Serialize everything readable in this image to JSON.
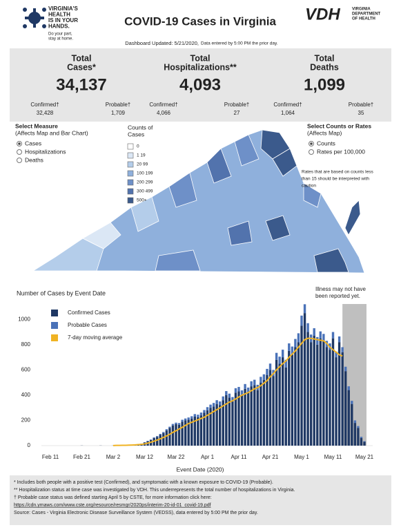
{
  "header": {
    "logo_lines": [
      "VIRGINIA'S",
      "HEALTH",
      "IS IN YOUR",
      "HANDS."
    ],
    "logo_tag": [
      "Do your part,",
      "stay at home."
    ],
    "title": "COVID-19 Cases in Virginia",
    "vdh": "VDH",
    "vdh_lines": [
      "VIRGINIA",
      "DEPARTMENT",
      "OF HEALTH"
    ],
    "updated": "Dashboard Updated: 5/21/2020,",
    "updated_note": "Data entered by 5:00 PM the prior day."
  },
  "stats": [
    {
      "label_lines": [
        "Total",
        "Cases*"
      ],
      "value": "34,137",
      "confirmed_label": "Confirmed†",
      "confirmed": "32,428",
      "probable_label": "Probable†",
      "probable": "1,709"
    },
    {
      "label_lines": [
        "Total",
        "Hospitalizations**"
      ],
      "value": "4,093",
      "confirmed_label": "Confirmed†",
      "confirmed": "4,066",
      "probable_label": "Probable†",
      "probable": "27"
    },
    {
      "label_lines": [
        "Total",
        "Deaths"
      ],
      "value": "1,099",
      "confirmed_label": "Confirmed†",
      "confirmed": "1,064",
      "probable_label": "Probable†",
      "probable": "35"
    }
  ],
  "measure": {
    "title": "Select Measure",
    "subtitle": "(Affects Map and Bar Chart)",
    "options": [
      "Cases",
      "Hospitalizations",
      "Deaths"
    ],
    "selected": 0
  },
  "counts_legend": {
    "title_lines": [
      "Counts of",
      "Cases"
    ],
    "items": [
      {
        "label": "0",
        "color": "#ffffff"
      },
      {
        "label": "1 19",
        "color": "#dbe7f5"
      },
      {
        "label": "20 99",
        "color": "#b4cdea"
      },
      {
        "label": "100 199",
        "color": "#8fb0dc"
      },
      {
        "label": "200 299",
        "color": "#6e90c8"
      },
      {
        "label": "300 499",
        "color": "#5273ad"
      },
      {
        "label": "500+",
        "color": "#3b5a8c"
      }
    ]
  },
  "select_counts": {
    "title": "Select Counts or Rates",
    "subtitle": "(Affects Map)",
    "options": [
      "Counts",
      "Rates per 100,000"
    ],
    "selected": 0,
    "note_lines": [
      "Rates that are based on counts less",
      "than 15 should be interpreted with",
      "caution"
    ]
  },
  "chart_data": {
    "type": "bar",
    "title": "Number of Cases by Event Date",
    "x_label": "Event Date (2020)",
    "annotation_lines": [
      "Illness may not have",
      "been reported yet."
    ],
    "categories": [
      "Feb 11",
      null,
      null,
      null,
      null,
      null,
      null,
      null,
      null,
      null,
      "Feb 21",
      null,
      null,
      null,
      null,
      null,
      null,
      null,
      null,
      null,
      "Mar 2",
      null,
      null,
      null,
      null,
      null,
      null,
      null,
      null,
      null,
      "Mar 12",
      null,
      null,
      null,
      null,
      null,
      null,
      null,
      null,
      null,
      "Mar 22",
      null,
      null,
      null,
      null,
      null,
      null,
      null,
      null,
      null,
      "Apr 1",
      null,
      null,
      null,
      null,
      null,
      null,
      null,
      null,
      null,
      "Apr 11",
      null,
      null,
      null,
      null,
      null,
      null,
      null,
      null,
      null,
      "Apr 21",
      null,
      null,
      null,
      null,
      null,
      null,
      null,
      null,
      null,
      "May 1",
      null,
      null,
      null,
      null,
      null,
      null,
      null,
      null,
      null,
      "May 11",
      null,
      null,
      null,
      null,
      null,
      null,
      null,
      null,
      null,
      "May 21"
    ],
    "series": [
      {
        "name": "Confirmed Cases",
        "color": "#1f3864",
        "values": [
          0,
          0,
          0,
          0,
          0,
          0,
          0,
          0,
          0,
          0,
          1,
          0,
          0,
          0,
          0,
          0,
          1,
          0,
          0,
          0,
          1,
          2,
          2,
          3,
          4,
          5,
          8,
          10,
          12,
          15,
          25,
          35,
          45,
          60,
          70,
          85,
          100,
          120,
          140,
          160,
          170,
          165,
          190,
          200,
          205,
          215,
          230,
          225,
          240,
          260,
          280,
          300,
          310,
          330,
          320,
          360,
          400,
          380,
          350,
          420,
          430,
          400,
          450,
          420,
          470,
          480,
          440,
          500,
          520,
          560,
          600,
          550,
          680,
          650,
          700,
          620,
          750,
          720,
          780,
          820,
          950,
          1050,
          900,
          820,
          870,
          800,
          850,
          830,
          780,
          760,
          850,
          700,
          820,
          740,
          590,
          440,
          330,
          180,
          140,
          60,
          30
        ]
      },
      {
        "name": "Probable Cases",
        "color": "#4a72b8",
        "values": [
          0,
          0,
          0,
          0,
          0,
          0,
          0,
          0,
          0,
          0,
          0,
          0,
          0,
          0,
          0,
          0,
          0,
          0,
          0,
          0,
          0,
          0,
          0,
          0,
          0,
          0,
          0,
          0,
          0,
          0,
          2,
          3,
          4,
          5,
          6,
          8,
          8,
          10,
          10,
          12,
          12,
          14,
          15,
          15,
          18,
          18,
          20,
          20,
          22,
          22,
          25,
          25,
          28,
          30,
          30,
          30,
          32,
          32,
          35,
          35,
          35,
          38,
          38,
          40,
          40,
          42,
          42,
          45,
          45,
          48,
          50,
          50,
          55,
          55,
          60,
          60,
          60,
          65,
          65,
          70,
          80,
          70,
          70,
          60,
          60,
          60,
          55,
          55,
          50,
          50,
          50,
          45,
          45,
          40,
          35,
          30,
          25,
          20,
          15,
          10,
          5
        ]
      },
      {
        "name": "7-day moving average",
        "type": "line",
        "color": "#f0b323",
        "values": [
          null,
          null,
          null,
          null,
          null,
          null,
          null,
          null,
          null,
          null,
          null,
          null,
          null,
          null,
          null,
          null,
          null,
          null,
          null,
          null,
          1,
          2,
          2,
          3,
          3,
          4,
          5,
          6,
          8,
          10,
          14,
          20,
          27,
          35,
          44,
          54,
          65,
          77,
          90,
          105,
          118,
          132,
          145,
          160,
          175,
          185,
          195,
          205,
          215,
          225,
          240,
          255,
          270,
          285,
          300,
          315,
          330,
          345,
          355,
          370,
          385,
          400,
          410,
          420,
          435,
          450,
          460,
          475,
          495,
          515,
          545,
          570,
          600,
          625,
          650,
          670,
          700,
          725,
          750,
          780,
          810,
          840,
          850,
          850,
          845,
          840,
          835,
          830,
          810,
          780,
          760,
          740,
          720,
          710,
          null,
          null,
          null,
          null,
          null,
          null,
          null
        ]
      }
    ],
    "ylim": [
      0,
      1100
    ],
    "yticks": [
      0,
      200,
      400,
      600,
      800,
      1000
    ],
    "grid": false,
    "stacked": true,
    "unreported_color": "#bfbfbf"
  },
  "footnotes": [
    "* Includes both people with a positive test (Confirmed), and symptomatic with a known exposure to COVID-19 (Probable).",
    "** Hospitalization status at time case was investigated by VDH. This underrepresents the total number of hospitalizations in Virginia.",
    "† Probable case status was defined starting April 5 by CSTE, for more information click here:",
    "https://cdn.ymaws.com/www.cste.org/resource/resmgr/2020ps/interim-20-id-01_covid-19.pdf",
    "Source:  Cases - Virginia Electronic Disease Surveillance System (VEDSS), data entered by 5:00 PM the prior day."
  ]
}
